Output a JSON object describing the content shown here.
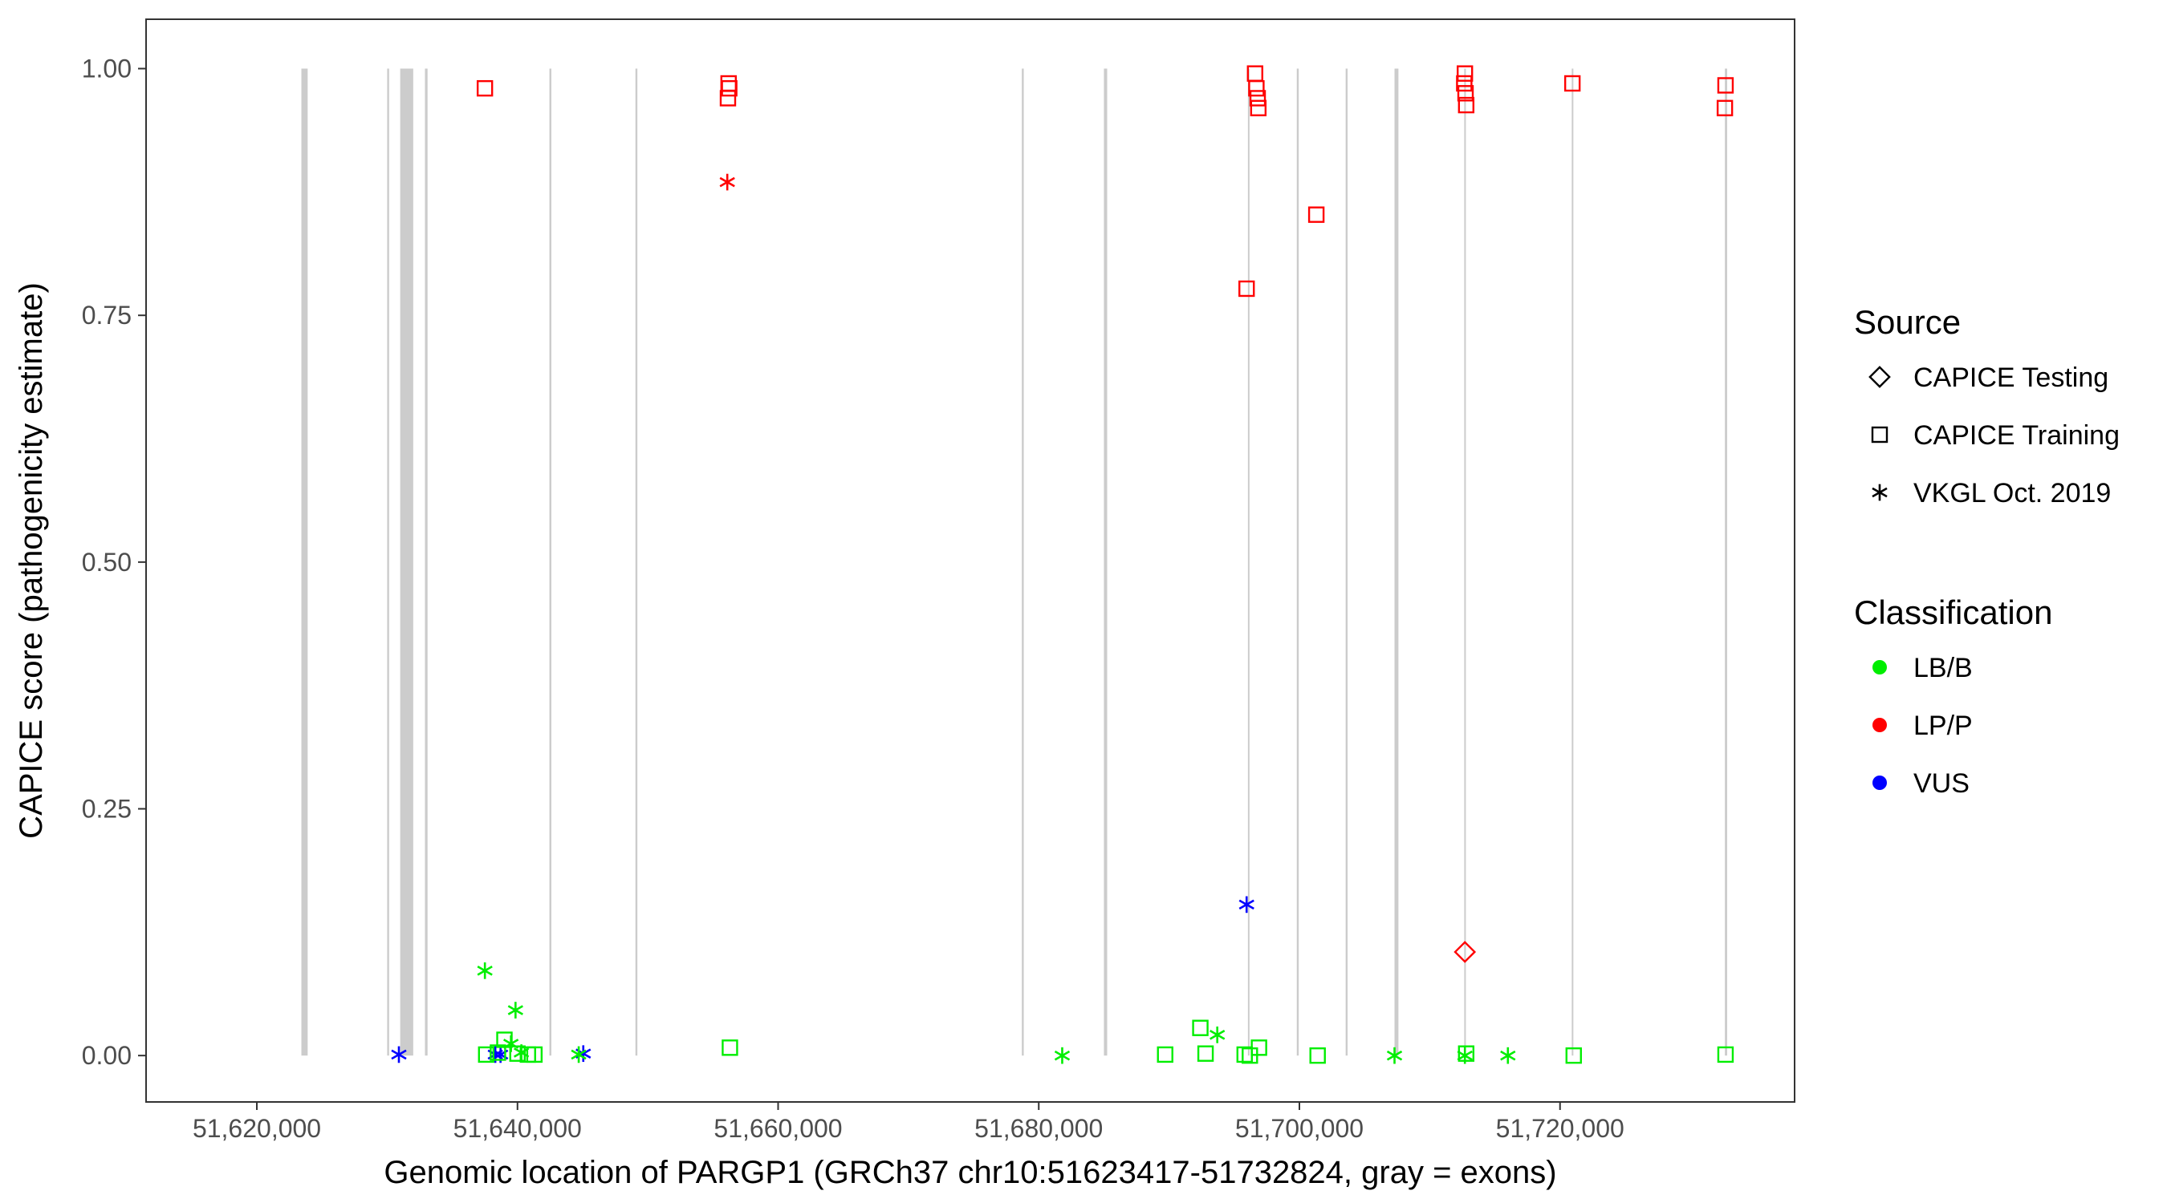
{
  "chart_data": {
    "type": "scatter",
    "xlabel": "Genomic location of PARGP1 (GRCh37 chr10:51623417-51732824, gray = exons)",
    "ylabel": "CAPICE score (pathogenicity estimate)",
    "xlim": [
      51611500,
      51738000
    ],
    "ylim": [
      -0.047,
      1.05
    ],
    "x_ticks": [
      51620000,
      51640000,
      51660000,
      51680000,
      51700000,
      51720000
    ],
    "x_tick_labels": [
      "51,620,000",
      "51,640,000",
      "51,660,000",
      "51,680,000",
      "51,700,000",
      "51,720,000"
    ],
    "y_ticks": [
      0,
      0.25,
      0.5,
      0.75,
      1.0
    ],
    "y_tick_labels": [
      "0.00",
      "0.25",
      "0.50",
      "0.75",
      "1.00"
    ],
    "grid": false,
    "legend_position": "right",
    "exons": [
      [
        51623417,
        51623900
      ],
      [
        51630000,
        51630150
      ],
      [
        51631000,
        51632000
      ],
      [
        51632900,
        51633100
      ],
      [
        51642450,
        51642600
      ],
      [
        51649050,
        51649200
      ],
      [
        51678700,
        51678850
      ],
      [
        51685000,
        51685250
      ],
      [
        51696050,
        51696150
      ],
      [
        51699800,
        51699950
      ],
      [
        51703550,
        51703700
      ],
      [
        51707300,
        51707600
      ],
      [
        51712650,
        51712750
      ],
      [
        51720900,
        51721000
      ],
      [
        51732650,
        51732824
      ]
    ],
    "legend_source": {
      "title": "Source",
      "entries": [
        {
          "label": "CAPICE Testing",
          "shape": "diamond"
        },
        {
          "label": "CAPICE Training",
          "shape": "square"
        },
        {
          "label": "VKGL Oct. 2019",
          "shape": "asterisk"
        }
      ]
    },
    "legend_classification": {
      "title": "Classification",
      "entries": [
        {
          "label": "LB/B",
          "color": "#00ee00"
        },
        {
          "label": "LP/P",
          "color": "#ff0000"
        },
        {
          "label": "VUS",
          "color": "#0000ff"
        }
      ]
    },
    "series": [
      {
        "source": "CAPICE Training",
        "classification": "LP/P",
        "color": "#ff0000",
        "shape": "square",
        "points": [
          [
            51637500,
            0.98
          ],
          [
            51656200,
            0.985
          ],
          [
            51656250,
            0.98
          ],
          [
            51656150,
            0.97
          ],
          [
            51696600,
            0.995
          ],
          [
            51696700,
            0.98
          ],
          [
            51696800,
            0.97
          ],
          [
            51696850,
            0.96
          ],
          [
            51695950,
            0.777
          ],
          [
            51701300,
            0.852
          ],
          [
            51712700,
            0.995
          ],
          [
            51712650,
            0.985
          ],
          [
            51712750,
            0.975
          ],
          [
            51712800,
            0.963
          ],
          [
            51720950,
            0.985
          ],
          [
            51732700,
            0.983
          ],
          [
            51732650,
            0.96
          ]
        ]
      },
      {
        "source": "VKGL Oct. 2019",
        "classification": "LP/P",
        "color": "#ff0000",
        "shape": "asterisk",
        "points": [
          [
            51656100,
            0.885
          ]
        ]
      },
      {
        "source": "CAPICE Testing",
        "classification": "LP/P",
        "color": "#ff0000",
        "shape": "diamond",
        "points": [
          [
            51712700,
            0.105
          ]
        ]
      },
      {
        "source": "VKGL Oct. 2019",
        "classification": "VUS",
        "color": "#0000ff",
        "shape": "asterisk",
        "points": [
          [
            51630900,
            0.001
          ],
          [
            51638300,
            0.001
          ],
          [
            51638700,
            0.001
          ],
          [
            51645050,
            0.002
          ],
          [
            51695950,
            0.153
          ]
        ]
      },
      {
        "source": "VKGL Oct. 2019",
        "classification": "LB/B",
        "color": "#00ee00",
        "shape": "asterisk",
        "points": [
          [
            51637500,
            0.086
          ],
          [
            51639850,
            0.046
          ],
          [
            51639500,
            0.012
          ],
          [
            51640300,
            0.003
          ],
          [
            51644700,
            0.001
          ],
          [
            51681800,
            0.0
          ],
          [
            51693700,
            0.021
          ],
          [
            51707300,
            0.0
          ],
          [
            51712700,
            0.0
          ],
          [
            51716000,
            0.0
          ]
        ]
      },
      {
        "source": "CAPICE Training",
        "classification": "LB/B",
        "color": "#00ee00",
        "shape": "square",
        "points": [
          [
            51637600,
            0.001
          ],
          [
            51638500,
            0.003
          ],
          [
            51639000,
            0.016
          ],
          [
            51640000,
            0.002
          ],
          [
            51640800,
            0.001
          ],
          [
            51641300,
            0.001
          ],
          [
            51656300,
            0.008
          ],
          [
            51689700,
            0.001
          ],
          [
            51692400,
            0.028
          ],
          [
            51692800,
            0.002
          ],
          [
            51695800,
            0.001
          ],
          [
            51696200,
            0.0
          ],
          [
            51696900,
            0.008
          ],
          [
            51701400,
            0.0
          ],
          [
            51712800,
            0.002
          ],
          [
            51721050,
            0.0
          ],
          [
            51732700,
            0.001
          ]
        ]
      }
    ]
  }
}
